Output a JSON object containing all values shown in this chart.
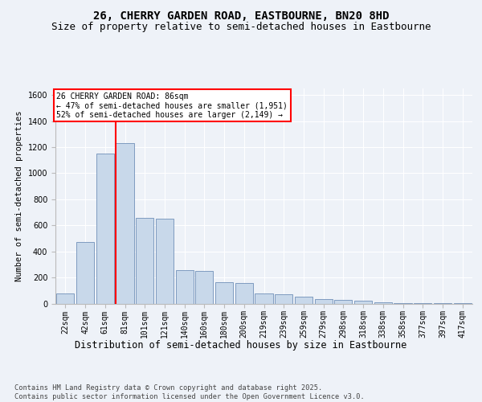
{
  "title1": "26, CHERRY GARDEN ROAD, EASTBOURNE, BN20 8HD",
  "title2": "Size of property relative to semi-detached houses in Eastbourne",
  "xlabel": "Distribution of semi-detached houses by size in Eastbourne",
  "ylabel": "Number of semi-detached properties",
  "bin_labels": [
    "22sqm",
    "42sqm",
    "61sqm",
    "81sqm",
    "101sqm",
    "121sqm",
    "140sqm",
    "160sqm",
    "180sqm",
    "200sqm",
    "219sqm",
    "239sqm",
    "259sqm",
    "279sqm",
    "298sqm",
    "318sqm",
    "338sqm",
    "358sqm",
    "377sqm",
    "397sqm",
    "417sqm"
  ],
  "bar_values": [
    75,
    470,
    1150,
    1230,
    655,
    650,
    255,
    250,
    165,
    160,
    75,
    70,
    50,
    35,
    30,
    20,
    10,
    5,
    4,
    3,
    2
  ],
  "bar_color": "#c8d8ea",
  "bar_edge_color": "#7090b8",
  "highlight_line_color": "red",
  "annotation_text": "26 CHERRY GARDEN ROAD: 86sqm\n← 47% of semi-detached houses are smaller (1,951)\n52% of semi-detached houses are larger (2,149) →",
  "annotation_box_color": "white",
  "annotation_box_edge": "red",
  "ylim": [
    0,
    1650
  ],
  "yticks": [
    0,
    200,
    400,
    600,
    800,
    1000,
    1200,
    1400,
    1600
  ],
  "footnote": "Contains HM Land Registry data © Crown copyright and database right 2025.\nContains public sector information licensed under the Open Government Licence v3.0.",
  "background_color": "#eef2f8",
  "plot_bg_color": "#eef2f8",
  "grid_color": "#ffffff",
  "title1_fontsize": 10,
  "title2_fontsize": 9,
  "xlabel_fontsize": 8.5,
  "ylabel_fontsize": 7.5,
  "tick_fontsize": 7,
  "footnote_fontsize": 6.2
}
